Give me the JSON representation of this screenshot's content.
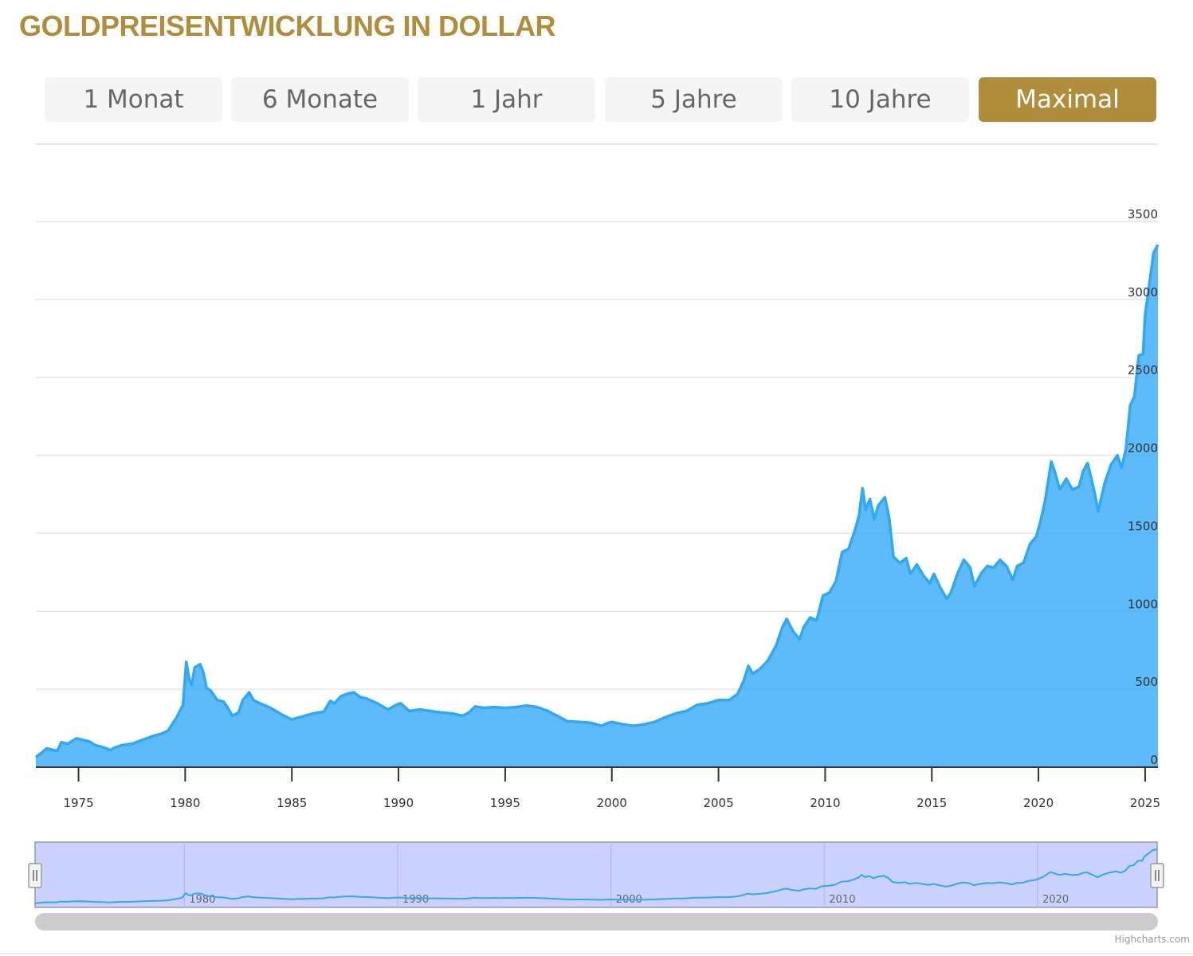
{
  "page": {
    "title": "GOLDPREISENTWICKLUNG IN DOLLAR",
    "credit": "Highcharts.com",
    "accent_color": "#B08D3A",
    "series_color": "#2FA8F8"
  },
  "range_buttons": [
    {
      "label": "1 Monat",
      "active": false
    },
    {
      "label": "6 Monate",
      "active": false
    },
    {
      "label": "1 Jahr",
      "active": false
    },
    {
      "label": "5 Jahre",
      "active": false
    },
    {
      "label": "10 Jahre",
      "active": false
    },
    {
      "label": "Maximal",
      "active": true
    }
  ],
  "chart_data": {
    "type": "area",
    "title": "",
    "xlabel": "",
    "ylabel": "",
    "xlim": [
      1973.0,
      2025.6
    ],
    "ylim": [
      0,
      3500
    ],
    "grid": true,
    "legend": "none",
    "x_ticks": [
      1975,
      1980,
      1985,
      1990,
      1995,
      2000,
      2005,
      2010,
      2015,
      2020,
      2025
    ],
    "y_ticks": [
      0,
      500,
      1000,
      1500,
      2000,
      2500,
      3000,
      3500
    ],
    "series": [
      {
        "x": [
          1973.0,
          1973.3,
          1973.5,
          1974.0,
          1974.2,
          1974.5,
          1974.9,
          1975.2,
          1975.5,
          1975.8,
          1976.1,
          1976.5,
          1976.7,
          1977.0,
          1977.5,
          1978.0,
          1978.5,
          1978.9,
          1979.2,
          1979.6,
          1979.9,
          1980.05,
          1980.2,
          1980.3,
          1980.45,
          1980.7,
          1980.85,
          1981.0,
          1981.2,
          1981.5,
          1981.8,
          1982.0,
          1982.2,
          1982.5,
          1982.7,
          1983.0,
          1983.2,
          1983.5,
          1984.0,
          1984.5,
          1985.0,
          1985.2,
          1985.5,
          1986.0,
          1986.5,
          1986.8,
          1987.0,
          1987.3,
          1987.6,
          1987.9,
          1988.2,
          1988.5,
          1989.0,
          1989.5,
          1989.9,
          1990.1,
          1990.5,
          1991.0,
          1991.5,
          1992.0,
          1992.5,
          1993.0,
          1993.3,
          1993.6,
          1994.0,
          1994.5,
          1995.0,
          1995.5,
          1996.0,
          1996.5,
          1997.0,
          1997.5,
          1997.9,
          1998.5,
          1999.0,
          1999.5,
          1999.75,
          2000.0,
          2000.5,
          2001.0,
          2001.3,
          2001.7,
          2002.0,
          2002.5,
          2003.0,
          2003.5,
          2004.0,
          2004.5,
          2005.0,
          2005.5,
          2005.9,
          2006.2,
          2006.4,
          2006.6,
          2006.9,
          2007.3,
          2007.7,
          2008.0,
          2008.2,
          2008.5,
          2008.8,
          2009.0,
          2009.3,
          2009.6,
          2009.9,
          2010.2,
          2010.5,
          2010.8,
          2011.1,
          2011.4,
          2011.6,
          2011.75,
          2011.9,
          2012.1,
          2012.3,
          2012.5,
          2012.8,
          2013.0,
          2013.2,
          2013.5,
          2013.8,
          2014.0,
          2014.3,
          2014.6,
          2014.9,
          2015.1,
          2015.4,
          2015.7,
          2015.9,
          2016.2,
          2016.5,
          2016.8,
          2017.0,
          2017.3,
          2017.6,
          2017.9,
          2018.2,
          2018.5,
          2018.8,
          2019.0,
          2019.3,
          2019.6,
          2019.9,
          2020.1,
          2020.3,
          2020.6,
          2020.8,
          2021.0,
          2021.3,
          2021.6,
          2021.9,
          2022.1,
          2022.3,
          2022.6,
          2022.8,
          2023.1,
          2023.4,
          2023.7,
          2023.9,
          2024.1,
          2024.3,
          2024.5,
          2024.7,
          2024.9,
          2025.0,
          2025.2,
          2025.4,
          2025.6
        ],
        "values": [
          65,
          95,
          120,
          105,
          160,
          150,
          185,
          175,
          165,
          140,
          130,
          110,
          125,
          140,
          150,
          175,
          200,
          215,
          235,
          320,
          400,
          675,
          560,
          525,
          640,
          660,
          610,
          510,
          490,
          430,
          420,
          380,
          330,
          350,
          430,
          480,
          430,
          410,
          380,
          340,
          305,
          315,
          325,
          345,
          355,
          425,
          410,
          455,
          470,
          480,
          450,
          440,
          410,
          370,
          400,
          410,
          360,
          370,
          360,
          350,
          345,
          330,
          350,
          390,
          380,
          385,
          380,
          385,
          395,
          385,
          360,
          325,
          295,
          290,
          285,
          265,
          280,
          290,
          275,
          265,
          270,
          280,
          290,
          320,
          345,
          360,
          400,
          410,
          430,
          430,
          470,
          560,
          650,
          600,
          625,
          680,
          780,
          900,
          950,
          870,
          820,
          900,
          960,
          940,
          1100,
          1120,
          1190,
          1380,
          1400,
          1520,
          1620,
          1790,
          1650,
          1720,
          1590,
          1680,
          1730,
          1600,
          1350,
          1310,
          1340,
          1240,
          1300,
          1230,
          1180,
          1240,
          1150,
          1080,
          1120,
          1240,
          1330,
          1280,
          1160,
          1240,
          1290,
          1280,
          1330,
          1290,
          1200,
          1290,
          1310,
          1430,
          1480,
          1580,
          1700,
          1960,
          1880,
          1780,
          1850,
          1780,
          1800,
          1900,
          1950,
          1780,
          1640,
          1820,
          1940,
          2000,
          1920,
          2040,
          2320,
          2380,
          2640,
          2650,
          2900,
          3100,
          3300,
          3350
        ]
      }
    ],
    "navigator": {
      "x_labels": [
        1980,
        1990,
        2000,
        2010,
        2020
      ]
    }
  }
}
